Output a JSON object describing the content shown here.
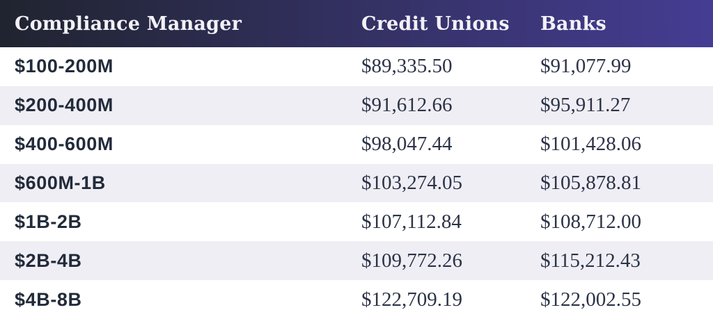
{
  "table": {
    "header": {
      "col1": "Compliance Manager",
      "col2": "Credit Unions",
      "col3": "Banks"
    },
    "rows": [
      {
        "range": "$100-200M",
        "credit_unions": "$89,335.50",
        "banks": "$91,077.99"
      },
      {
        "range": "$200-400M",
        "credit_unions": "$91,612.66",
        "banks": "$95,911.27"
      },
      {
        "range": "$400-600M",
        "credit_unions": "$98,047.44",
        "banks": "$101,428.06"
      },
      {
        "range": "$600M-1B",
        "credit_unions": "$103,274.05",
        "banks": "$105,878.81"
      },
      {
        "range": "$1B-2B",
        "credit_unions": "$107,112.84",
        "banks": "$108,712.00"
      },
      {
        "range": "$2B-4B",
        "credit_unions": "$109,772.26",
        "banks": "$115,212.43"
      },
      {
        "range": "$4B-8B",
        "credit_unions": "$122,709.19",
        "banks": "$122,002.55"
      }
    ]
  },
  "colors": {
    "header_gradient_left": "#20242f",
    "header_gradient_mid": "#343164",
    "header_gradient_right": "#453d93",
    "header_text": "#f2f1f7",
    "label_text": "#222b3a",
    "value_text": "#2b3347",
    "row_bg_white": "#ffffff",
    "row_bg_alt": "#efeef4"
  },
  "chart_data": {
    "type": "table",
    "title": "Compliance Manager",
    "columns": [
      "Compliance Manager",
      "Credit Unions",
      "Banks"
    ],
    "categories": [
      "$100-200M",
      "$200-400M",
      "$400-600M",
      "$600M-1B",
      "$1B-2B",
      "$2B-4B",
      "$4B-8B"
    ],
    "series": [
      {
        "name": "Credit Unions",
        "values": [
          89335.5,
          91612.66,
          98047.44,
          103274.05,
          107112.84,
          109772.26,
          122709.19
        ]
      },
      {
        "name": "Banks",
        "values": [
          91077.99,
          95911.27,
          101428.06,
          105878.81,
          108712.0,
          115212.43,
          122002.55
        ]
      }
    ]
  }
}
